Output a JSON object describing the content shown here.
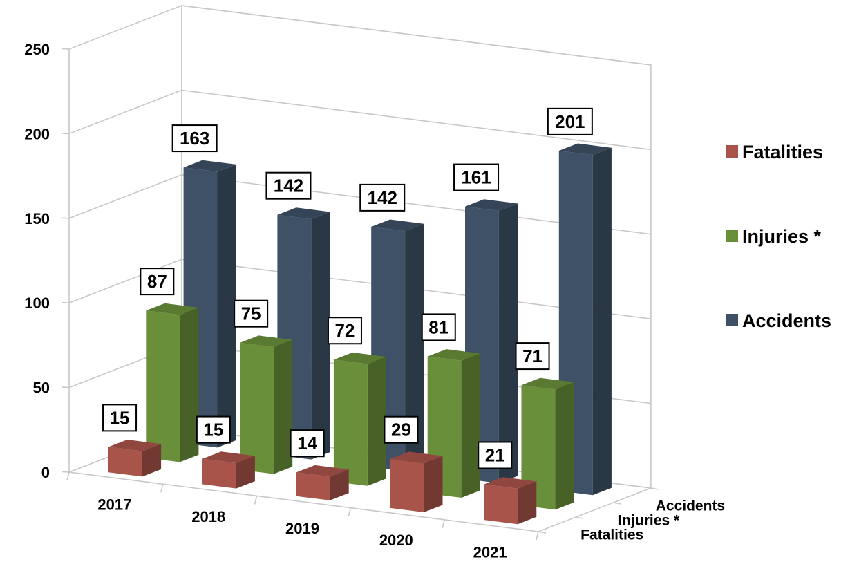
{
  "chart_data": {
    "type": "bar",
    "title": "",
    "xlabel": "",
    "ylabel": "",
    "categories": [
      "2017",
      "2018",
      "2019",
      "2020",
      "2021"
    ],
    "series": [
      {
        "name": "Fatalities",
        "values": [
          15,
          15,
          14,
          29,
          21
        ],
        "color": "#a8544a"
      },
      {
        "name": "Injuries *",
        "values": [
          87,
          75,
          72,
          81,
          71
        ],
        "color": "#6a8f3a"
      },
      {
        "name": "Accidents",
        "values": [
          163,
          142,
          142,
          161,
          201
        ],
        "color": "#3e5166"
      }
    ],
    "ylim": [
      0,
      250
    ],
    "yticks": [
      "0",
      "50",
      "100",
      "150",
      "200",
      "250"
    ],
    "depth_labels": [
      "Fatalities",
      "Injuries *",
      "Accidents"
    ],
    "legend": "right",
    "grid": true
  }
}
